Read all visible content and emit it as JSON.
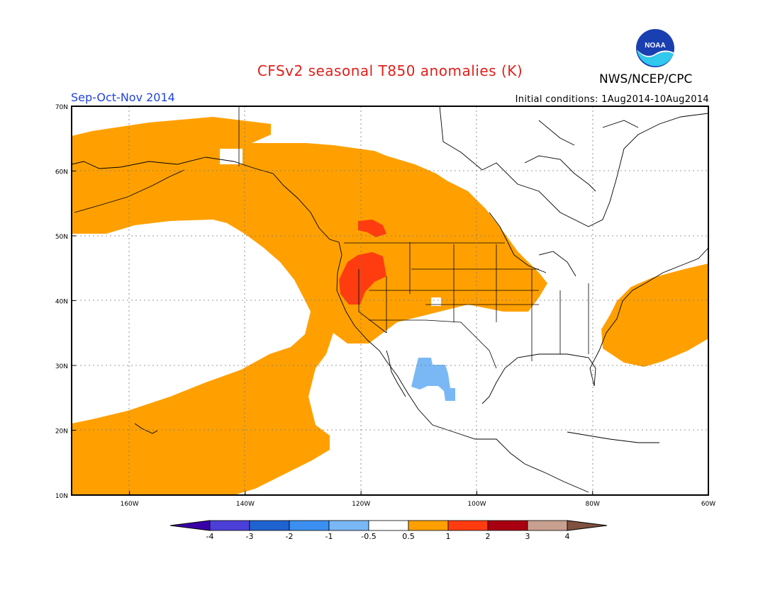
{
  "header": {
    "title": "CFSv2 seasonal T850 anomalies (K)",
    "organization": "NWS/NCEP/CPC",
    "season": "Sep-Oct-Nov 2014",
    "initial_conditions": "Initial conditions: 1Aug2014-10Aug2014",
    "logo_text": "NOAA"
  },
  "map": {
    "lat_range": [
      10,
      70
    ],
    "lon_range": [
      -170,
      -60
    ],
    "lat_labels": [
      "10N",
      "20N",
      "30N",
      "40N",
      "50N",
      "60N",
      "70N"
    ],
    "lon_labels": [
      "160W",
      "140W",
      "120W",
      "100W",
      "80W",
      "60W"
    ]
  },
  "legend": {
    "thresholds": [
      "-4",
      "-3",
      "-2",
      "-1",
      "-0.5",
      "0.5",
      "1",
      "2",
      "3",
      "4"
    ],
    "colors": [
      "#3a00a8",
      "#4b3fd8",
      "#1f63d0",
      "#3b8ff0",
      "#7ab8f5",
      "#ffffff",
      "#ffa000",
      "#ff3c10",
      "#a80010",
      "#c8a090",
      "#805040"
    ]
  },
  "colors": {
    "warm": "#ffa000",
    "hot": "#ff3c10",
    "cool": "#7ab8f5",
    "title": "#e0201a",
    "season": "#2244dd"
  }
}
